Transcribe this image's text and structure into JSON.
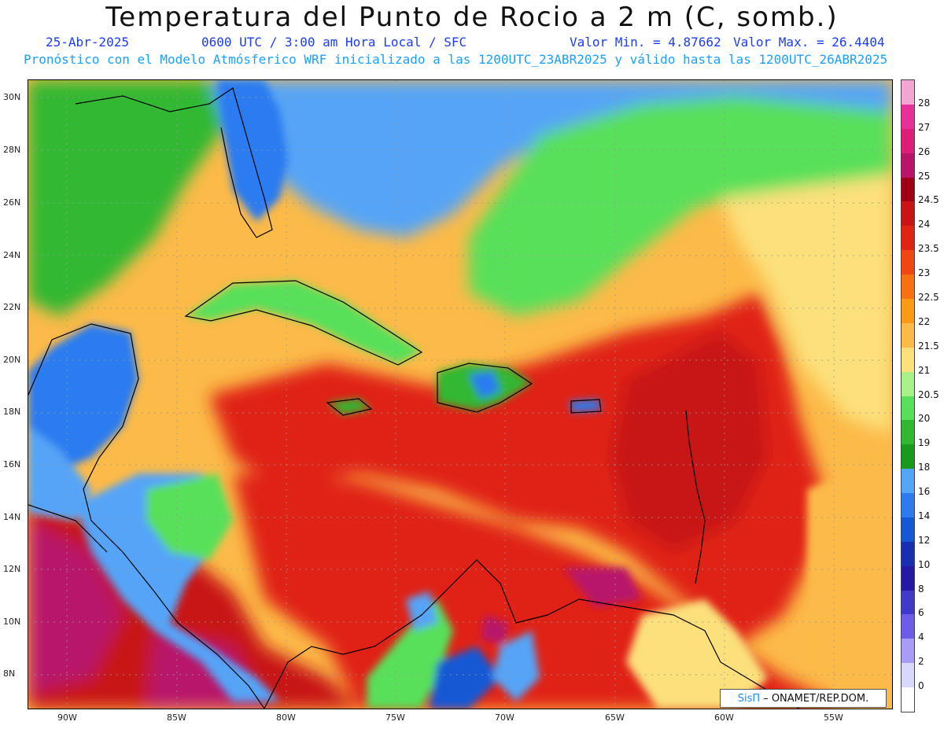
{
  "header": {
    "title": "Temperatura del Punto de Rocio a 2 m (C, somb.)",
    "date": "25-Abr-2025",
    "time_info": "0600 UTC / 3:00 am Hora Local / SFC",
    "min_value": "Valor Min. = 4.87662",
    "max_value": "Valor Max. = 26.4404",
    "forecast_info": "Pronóstico con el Modelo Atmósferico WRF inicializado a las 1200UTC_23ABR2025 y válido hasta las  1200UTC_26ABR2025"
  },
  "axes": {
    "lat_labels": [
      "30N",
      "28N",
      "26N",
      "24N",
      "22N",
      "20N",
      "18N",
      "16N",
      "14N",
      "12N",
      "10N",
      "8N"
    ],
    "lon_labels": [
      "90W",
      "85W",
      "80W",
      "75W",
      "70W",
      "65W",
      "60W",
      "55W"
    ]
  },
  "colorbar": {
    "labels": [
      "28",
      "27",
      "26",
      "25",
      "24.5",
      "24",
      "23.5",
      "23",
      "22.5",
      "22",
      "21.5",
      "21",
      "20.5",
      "20",
      "19",
      "18",
      "16",
      "14",
      "12",
      "10",
      "8",
      "6",
      "4",
      "2",
      "0"
    ],
    "colors": [
      "#f4a6d2",
      "#e8309a",
      "#dc1e78",
      "#b8146a",
      "#a00014",
      "#c81414",
      "#e02414",
      "#f04614",
      "#f87010",
      "#fc9a18",
      "#fcba48",
      "#fce07c",
      "#a8f088",
      "#58e05a",
      "#30b830",
      "#1a9a1a",
      "#54a4f8",
      "#2c7cf0",
      "#1458d4",
      "#1830b0",
      "#2418a4",
      "#4038c8",
      "#6c5ce8",
      "#a89cf8",
      "#d8d8fc",
      "#ffffff"
    ]
  },
  "credit": {
    "logo": "SisΠ",
    "text": "– ONAMET/REP.DOM."
  }
}
